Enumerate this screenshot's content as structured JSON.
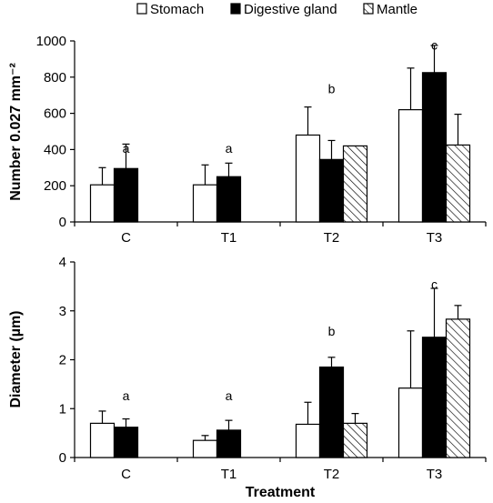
{
  "legend": [
    {
      "name": "Stomach",
      "fill": "white"
    },
    {
      "name": "Digestive gland",
      "fill": "black"
    },
    {
      "name": "Mantle",
      "fill": "hatch"
    }
  ],
  "colors": {
    "stomach": "#ffffff",
    "digestive_gland": "#000000",
    "mantle_hatch": "#000000",
    "axis": "#000000"
  },
  "chart_data": [
    {
      "type": "bar",
      "ylabel": "Number 0.027 mm⁻²",
      "xlabel": "",
      "categories": [
        "C",
        "T1",
        "T2",
        "T3"
      ],
      "ylim": [
        0,
        1000
      ],
      "yticks": [
        "0",
        "200",
        "400",
        "600",
        "800",
        "1000"
      ],
      "grid": false,
      "legend_position": "top",
      "series": [
        {
          "name": "Stomach",
          "values": [
            205,
            205,
            480,
            620
          ],
          "errors": [
            95,
            110,
            155,
            230
          ]
        },
        {
          "name": "Digestive gland",
          "values": [
            295,
            250,
            345,
            825
          ],
          "errors": [
            135,
            75,
            105,
            150
          ]
        },
        {
          "name": "Mantle",
          "values": [
            0,
            0,
            420,
            425
          ],
          "errors": [
            0,
            0,
            0,
            170
          ]
        }
      ],
      "annotations": [
        "a",
        "a",
        "b",
        "c"
      ]
    },
    {
      "type": "bar",
      "ylabel": "Diameter (µm)",
      "xlabel": "Treatment",
      "categories": [
        "C",
        "T1",
        "T2",
        "T3"
      ],
      "ylim": [
        0,
        4
      ],
      "yticks": [
        "0",
        "1",
        "2",
        "3",
        "4"
      ],
      "grid": false,
      "series": [
        {
          "name": "Stomach",
          "values": [
            0.7,
            0.35,
            0.68,
            1.42
          ],
          "errors": [
            0.25,
            0.1,
            0.45,
            1.17
          ]
        },
        {
          "name": "Digestive gland",
          "values": [
            0.62,
            0.56,
            1.85,
            2.46
          ],
          "errors": [
            0.17,
            0.2,
            0.2,
            1.0
          ]
        },
        {
          "name": "Mantle",
          "values": [
            0,
            0,
            0.7,
            2.83
          ],
          "errors": [
            0,
            0,
            0.2,
            0.28
          ]
        }
      ],
      "annotations": [
        "a",
        "a",
        "b",
        "c"
      ]
    }
  ]
}
